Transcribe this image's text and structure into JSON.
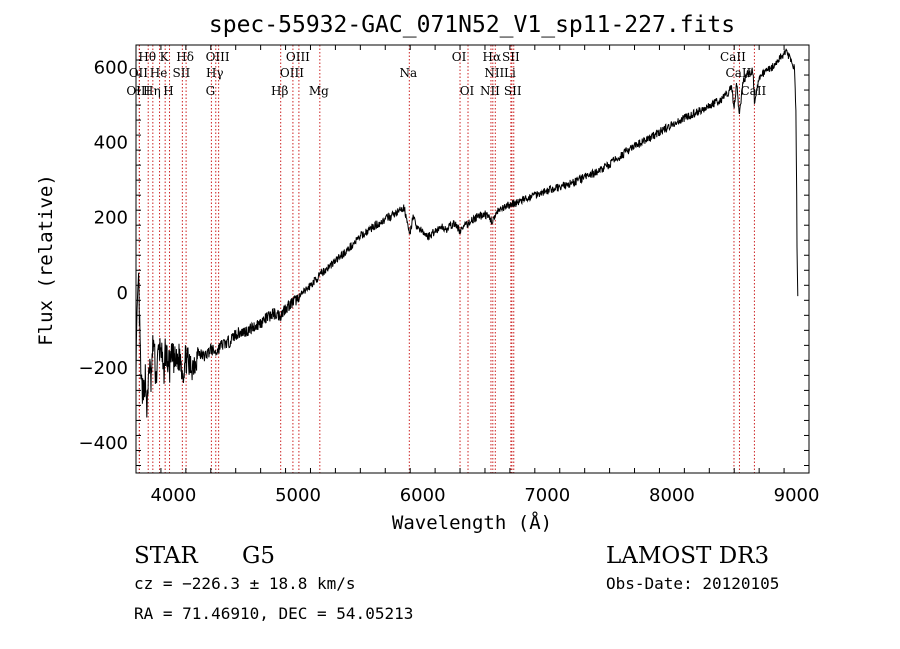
{
  "chart_data": {
    "type": "line",
    "title": "spec-55932-GAC_071N52_V1_sp11-227.fits",
    "xlabel": "Wavelength (Å)",
    "ylabel": "Flux (relative)",
    "xlim": [
      3700,
      9100
    ],
    "ylim": [
      -480,
      660
    ],
    "xticks": [
      4000,
      5000,
      6000,
      7000,
      8000,
      9000
    ],
    "yticks": [
      -400,
      -200,
      0,
      200,
      400,
      600
    ],
    "line_color": "#000000",
    "marker_color": "#cc2222",
    "series": [
      {
        "name": "flux",
        "anchors": [
          [
            3700,
            -180
          ],
          [
            3720,
            40
          ],
          [
            3740,
            -240
          ],
          [
            3760,
            -280
          ],
          [
            3775,
            -220
          ],
          [
            3790,
            -320
          ],
          [
            3805,
            -180
          ],
          [
            3820,
            -240
          ],
          [
            3840,
            -120
          ],
          [
            3860,
            -230
          ],
          [
            3880,
            -160
          ],
          [
            3900,
            -140
          ],
          [
            3920,
            -230
          ],
          [
            3935,
            -150
          ],
          [
            3950,
            -180
          ],
          [
            3970,
            -200
          ],
          [
            3990,
            -170
          ],
          [
            4020,
            -190
          ],
          [
            4050,
            -170
          ],
          [
            4080,
            -210
          ],
          [
            4100,
            -170
          ],
          [
            4130,
            -200
          ],
          [
            4160,
            -190
          ],
          [
            4200,
            -160
          ],
          [
            4250,
            -170
          ],
          [
            4300,
            -150
          ],
          [
            4340,
            -160
          ],
          [
            4380,
            -140
          ],
          [
            4450,
            -130
          ],
          [
            4500,
            -110
          ],
          [
            4600,
            -100
          ],
          [
            4700,
            -80
          ],
          [
            4800,
            -55
          ],
          [
            4860,
            -60
          ],
          [
            4900,
            -40
          ],
          [
            5000,
            -15
          ],
          [
            5100,
            20
          ],
          [
            5200,
            55
          ],
          [
            5300,
            85
          ],
          [
            5400,
            115
          ],
          [
            5500,
            150
          ],
          [
            5600,
            175
          ],
          [
            5700,
            195
          ],
          [
            5750,
            205
          ],
          [
            5800,
            215
          ],
          [
            5850,
            225
          ],
          [
            5880,
            190
          ],
          [
            5895,
            150
          ],
          [
            5920,
            200
          ],
          [
            5950,
            180
          ],
          [
            6000,
            160
          ],
          [
            6050,
            150
          ],
          [
            6100,
            165
          ],
          [
            6150,
            175
          ],
          [
            6200,
            170
          ],
          [
            6250,
            185
          ],
          [
            6300,
            165
          ],
          [
            6350,
            180
          ],
          [
            6400,
            195
          ],
          [
            6500,
            210
          ],
          [
            6560,
            190
          ],
          [
            6600,
            215
          ],
          [
            6700,
            235
          ],
          [
            6800,
            245
          ],
          [
            6900,
            262
          ],
          [
            7000,
            272
          ],
          [
            7100,
            282
          ],
          [
            7200,
            292
          ],
          [
            7300,
            308
          ],
          [
            7400,
            322
          ],
          [
            7500,
            342
          ],
          [
            7600,
            368
          ],
          [
            7700,
            390
          ],
          [
            7800,
            408
          ],
          [
            7900,
            428
          ],
          [
            8000,
            448
          ],
          [
            8100,
            465
          ],
          [
            8200,
            482
          ],
          [
            8300,
            498
          ],
          [
            8400,
            515
          ],
          [
            8480,
            545
          ],
          [
            8498,
            490
          ],
          [
            8520,
            560
          ],
          [
            8542,
            470
          ],
          [
            8570,
            560
          ],
          [
            8600,
            580
          ],
          [
            8650,
            590
          ],
          [
            8662,
            510
          ],
          [
            8700,
            575
          ],
          [
            8800,
            600
          ],
          [
            8880,
            630
          ],
          [
            8920,
            640
          ],
          [
            8950,
            625
          ],
          [
            8970,
            610
          ],
          [
            8985,
            595
          ],
          [
            8995,
            480
          ],
          [
            9000,
            300
          ],
          [
            9005,
            80
          ],
          [
            9010,
            0
          ]
        ]
      }
    ],
    "line_markers": [
      {
        "name": "Hθ",
        "wave": 3798,
        "row": 1
      },
      {
        "name": "OII",
        "wave": 3727,
        "row": 2
      },
      {
        "name": "OIII",
        "wave": 3727,
        "row": 3
      },
      {
        "name": "Hη",
        "wave": 3835,
        "row": 3
      },
      {
        "name": "He",
        "wave": 3889,
        "row": 2
      },
      {
        "name": "K",
        "wave": 3934,
        "row": 1
      },
      {
        "name": "H",
        "wave": 3969,
        "row": 3
      },
      {
        "name": "SII",
        "wave": 4072,
        "row": 2
      },
      {
        "name": "Hδ",
        "wave": 4102,
        "row": 1
      },
      {
        "name": "OIII",
        "wave": 4363,
        "row": 1
      },
      {
        "name": "Hγ",
        "wave": 4340,
        "row": 2
      },
      {
        "name": "G",
        "wave": 4305,
        "row": 3
      },
      {
        "name": "Hβ",
        "wave": 4861,
        "row": 3
      },
      {
        "name": "OIII",
        "wave": 4959,
        "row": 2
      },
      {
        "name": "OIII",
        "wave": 5007,
        "row": 1
      },
      {
        "name": "Mg",
        "wave": 5175,
        "row": 3
      },
      {
        "name": "Na",
        "wave": 5893,
        "row": 2
      },
      {
        "name": "OI",
        "wave": 6300,
        "row": 1
      },
      {
        "name": "OI",
        "wave": 6364,
        "row": 3
      },
      {
        "name": "NII",
        "wave": 6548,
        "row": 3
      },
      {
        "name": "Hα",
        "wave": 6563,
        "row": 1
      },
      {
        "name": "NII",
        "wave": 6583,
        "row": 2
      },
      {
        "name": "SII",
        "wave": 6716,
        "row": 1
      },
      {
        "name": "Li",
        "wave": 6708,
        "row": 2
      },
      {
        "name": "SII",
        "wave": 6731,
        "row": 3
      },
      {
        "name": "CaII",
        "wave": 8498,
        "row": 1
      },
      {
        "name": "CaII",
        "wave": 8542,
        "row": 2
      },
      {
        "name": "CaII",
        "wave": 8662,
        "row": 3
      }
    ]
  },
  "info": {
    "class_label": "STAR",
    "subclass": "G5",
    "survey": "LAMOST DR3",
    "cz": "cz = −226.3 ± 18.8 km/s",
    "obs_date": "Obs-Date: 20120105",
    "coords": "RA =  71.46910, DEC =  54.05213"
  }
}
